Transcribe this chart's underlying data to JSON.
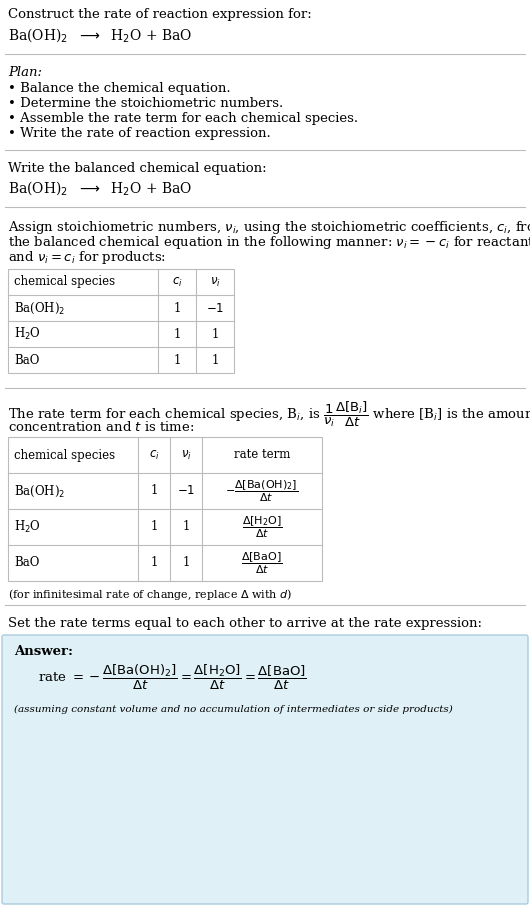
{
  "bg_color": "#ffffff",
  "text_color": "#000000",
  "light_blue_bg": "#dff0f7",
  "border_color": "#aaccdd",
  "line_color": "#bbbbbb",
  "section1_title": "Construct the rate of reaction expression for:",
  "section1_eq": "Ba(OH)$_2$  $\\longrightarrow$  H$_2$O + BaO",
  "plan_title": "Plan:",
  "plan_items": [
    "• Balance the chemical equation.",
    "• Determine the stoichiometric numbers.",
    "• Assemble the rate term for each chemical species.",
    "• Write the rate of reaction expression."
  ],
  "section2_title": "Write the balanced chemical equation:",
  "section2_eq": "Ba(OH)$_2$  $\\longrightarrow$  H$_2$O + BaO",
  "section3_line1": "Assign stoichiometric numbers, $\\nu_i$, using the stoichiometric coefficients, $c_i$, from",
  "section3_line2": "the balanced chemical equation in the following manner: $\\nu_i = -c_i$ for reactants",
  "section3_line3": "and $\\nu_i = c_i$ for products:",
  "table1_headers": [
    "chemical species",
    "$c_i$",
    "$\\nu_i$"
  ],
  "table1_rows": [
    [
      "Ba(OH)$_2$",
      "1",
      "$-1$"
    ],
    [
      "H$_2$O",
      "1",
      "1"
    ],
    [
      "BaO",
      "1",
      "1"
    ]
  ],
  "section4_line1": "The rate term for each chemical species, B$_i$, is $\\dfrac{1}{\\nu_i}\\dfrac{\\Delta[\\mathrm{B}_i]}{\\Delta t}$ where [B$_i$] is the amount",
  "section4_line2": "concentration and $t$ is time:",
  "table2_headers": [
    "chemical species",
    "$c_i$",
    "$\\nu_i$",
    "rate term"
  ],
  "table2_rows": [
    [
      "Ba(OH)$_2$",
      "1",
      "$-1$",
      "$-\\dfrac{\\Delta[\\mathrm{Ba(OH)_2}]}{\\Delta t}$"
    ],
    [
      "H$_2$O",
      "1",
      "1",
      "$\\dfrac{\\Delta[\\mathrm{H_2O}]}{\\Delta t}$"
    ],
    [
      "BaO",
      "1",
      "1",
      "$\\dfrac{\\Delta[\\mathrm{BaO}]}{\\Delta t}$"
    ]
  ],
  "delta_note": "(for infinitesimal rate of change, replace $\\Delta$ with $d$)",
  "section5_intro": "Set the rate terms equal to each other to arrive at the rate expression:",
  "answer_label": "Answer:",
  "answer_eq": "rate $= -\\dfrac{\\Delta[\\mathrm{Ba(OH)_2}]}{\\Delta t} = \\dfrac{\\Delta[\\mathrm{H_2O}]}{\\Delta t} = \\dfrac{\\Delta[\\mathrm{BaO}]}{\\Delta t}$",
  "answer_note": "(assuming constant volume and no accumulation of intermediates or side products)"
}
